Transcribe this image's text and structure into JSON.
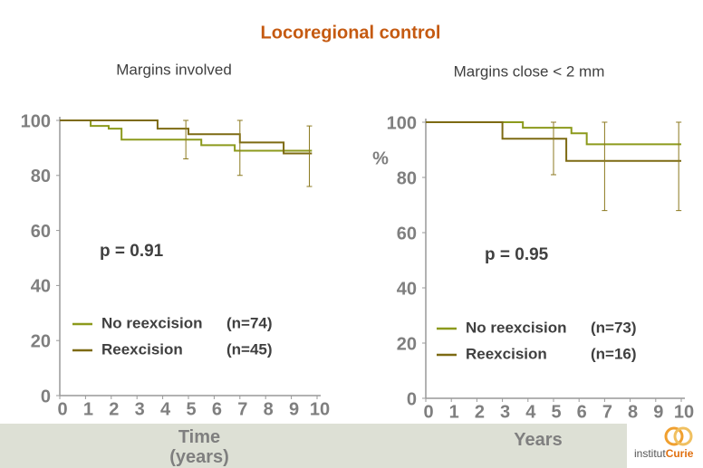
{
  "title": "Locoregional control",
  "logo": [
    "institut",
    "Curie"
  ],
  "chart_data": [
    {
      "type": "line",
      "step": true,
      "subtitle": "Margins involved",
      "xlabel": "Time (years)",
      "annotation": "p = 0.91",
      "xlim": [
        0,
        10
      ],
      "xticks": [
        0,
        1,
        2,
        3,
        4,
        5,
        6,
        7,
        8,
        9,
        10
      ],
      "ylim": [
        0,
        100
      ],
      "yticks": [
        0,
        20,
        40,
        60,
        80,
        100
      ],
      "series": [
        {
          "name": "No reexcision",
          "n_label": "(n=74)",
          "color": "#8c9a1c",
          "x": [
            0,
            1.2,
            1.9,
            2.4,
            5.5,
            6.8,
            9.8
          ],
          "values": [
            100,
            98,
            97,
            93,
            91,
            89,
            89
          ]
        },
        {
          "name": "Reexcision",
          "n_label": "(n=45)",
          "color": "#7d6a12",
          "x": [
            0,
            3.8,
            5.0,
            7.0,
            8.7,
            9.8
          ],
          "values": [
            100,
            97,
            95,
            92,
            88,
            88
          ]
        }
      ],
      "ci": [
        {
          "x": 4.9,
          "low": 86,
          "high": 100
        },
        {
          "x": 7,
          "low": 80,
          "high": 100
        },
        {
          "x": 9.7,
          "low": 76,
          "high": 98
        }
      ]
    },
    {
      "type": "line",
      "step": true,
      "subtitle": "Margins close < 2 mm",
      "xlabel": "Years",
      "ylabel": "%",
      "annotation": "p = 0.95",
      "xlim": [
        0,
        10
      ],
      "xticks": [
        0,
        1,
        2,
        3,
        4,
        5,
        6,
        7,
        8,
        9,
        10
      ],
      "ylim": [
        0,
        100
      ],
      "yticks": [
        0,
        20,
        40,
        60,
        80,
        100
      ],
      "series": [
        {
          "name": "No reexcision",
          "n_label": "(n=73)",
          "color": "#8c9a1c",
          "x": [
            0,
            3.8,
            5.7,
            6.3,
            10
          ],
          "values": [
            100,
            98,
            96,
            92,
            92
          ]
        },
        {
          "name": "Reexcision",
          "n_label": "(n=16)",
          "color": "#7d6a12",
          "x": [
            0,
            3.0,
            5.5,
            10
          ],
          "values": [
            100,
            94,
            86,
            86
          ]
        }
      ],
      "ci": [
        {
          "x": 5,
          "low": 81,
          "high": 100
        },
        {
          "x": 7,
          "low": 68,
          "high": 100
        },
        {
          "x": 9.9,
          "low": 68,
          "high": 100
        }
      ]
    }
  ]
}
